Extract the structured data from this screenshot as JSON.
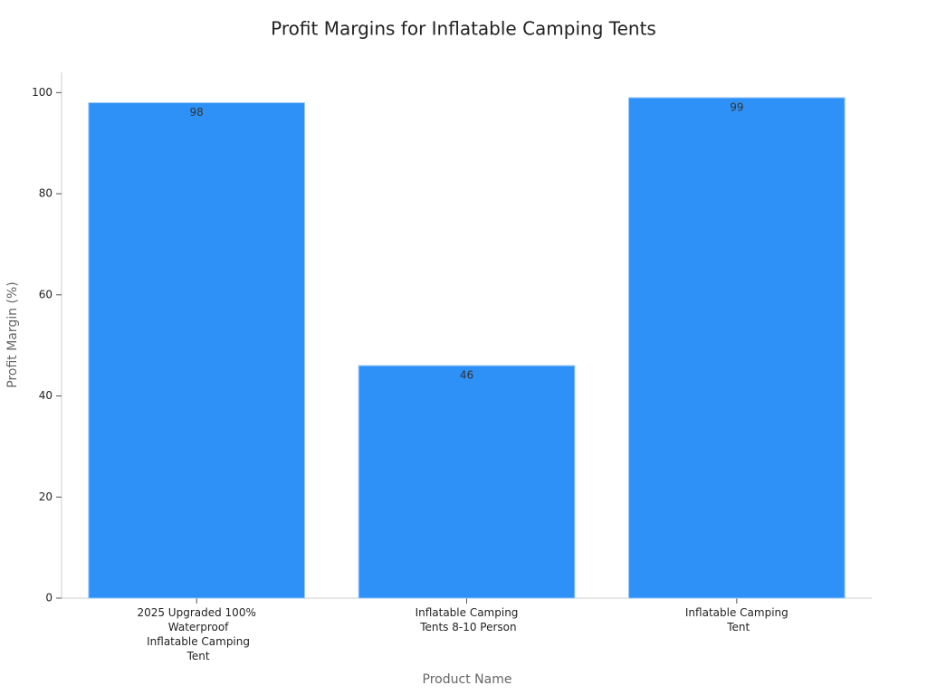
{
  "chart_data": {
    "type": "bar",
    "title": "Profit Margins for Inflatable Camping Tents",
    "x_label": "Product Name",
    "y_label": "Profit Margin (%)",
    "categories": [
      "2025 Upgraded 100% Waterproof Inflatable Camping Tent",
      "Inflatable Camping Tents 8-10 Person",
      "Inflatable Camping Tent"
    ],
    "values": [
      98,
      46,
      99
    ],
    "color": "#2e91f7",
    "ylim": [
      0,
      104
    ],
    "yticks": [
      0,
      20,
      40,
      60,
      80,
      100
    ],
    "grid": false
  }
}
